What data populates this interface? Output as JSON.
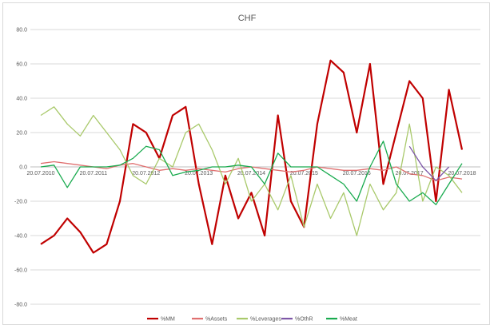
{
  "chart_data": {
    "type": "line",
    "title": "CHF",
    "xlabel": "",
    "ylabel": "",
    "ylim": [
      -80,
      80
    ],
    "yticks": [
      -80,
      -60,
      -40,
      -20,
      0,
      20,
      40,
      60,
      80
    ],
    "ytick_labels": [
      "-80.0",
      "-60.0",
      "-40.0",
      "-20.0",
      "0.0",
      "20.0",
      "40.0",
      "60.0",
      "80.0"
    ],
    "x_start": "2010-07-20",
    "x_end": "2018-07-20",
    "xtick_labels": [
      "20.07.2010",
      "20.07.2011",
      "20.07.2012",
      "20.07.2013",
      "20.07.2014",
      "20.07.2015",
      "20.07.2016",
      "20.07.2017",
      "20.07.2018"
    ],
    "grid": true,
    "legend_position": "bottom",
    "x_dates": [
      "2010-07-20",
      "2010-10-20",
      "2011-01-20",
      "2011-04-20",
      "2011-07-20",
      "2011-10-20",
      "2012-01-20",
      "2012-04-20",
      "2012-07-20",
      "2012-10-20",
      "2013-01-20",
      "2013-04-20",
      "2013-07-20",
      "2013-10-20",
      "2014-01-20",
      "2014-04-20",
      "2014-07-20",
      "2014-10-20",
      "2015-01-20",
      "2015-04-20",
      "2015-07-20",
      "2015-10-20",
      "2016-01-20",
      "2016-04-20",
      "2016-07-20",
      "2016-10-20",
      "2017-01-20",
      "2017-04-20",
      "2017-07-20",
      "2017-10-20",
      "2018-01-20",
      "2018-04-20",
      "2018-07-20"
    ],
    "series": [
      {
        "name": "%MM",
        "color": "#c00000",
        "values": [
          -45,
          -40,
          -30,
          -38,
          -50,
          -45,
          -20,
          25,
          20,
          5,
          30,
          35,
          -10,
          -45,
          -5,
          -30,
          -15,
          -40,
          30,
          -20,
          -35,
          25,
          62,
          55,
          20,
          60,
          -10,
          20,
          50,
          40,
          -20,
          45,
          10
        ]
      },
      {
        "name": "%Assets",
        "color": "#e07070",
        "values": [
          2,
          3,
          2,
          1,
          0,
          -1,
          1,
          2,
          0,
          -2,
          -1,
          -2,
          -1,
          -2,
          -3,
          -1,
          0,
          -1,
          -2,
          -3,
          -2,
          0,
          -1,
          -2,
          -2,
          -1,
          -2,
          0,
          -4,
          -5,
          -8,
          -6,
          -7
        ]
      },
      {
        "name": "%Leverages",
        "color": "#a9c96b",
        "values": [
          30,
          35,
          25,
          18,
          30,
          20,
          10,
          -5,
          -10,
          5,
          0,
          20,
          25,
          10,
          -10,
          5,
          -20,
          -10,
          -25,
          -5,
          -35,
          -10,
          -30,
          -15,
          -40,
          -10,
          -25,
          -15,
          25,
          -20,
          0,
          -5,
          -15
        ]
      },
      {
        "name": "%OthR",
        "color": "#7e57a8",
        "values": [
          null,
          null,
          null,
          null,
          null,
          null,
          null,
          null,
          null,
          null,
          null,
          null,
          null,
          null,
          null,
          null,
          null,
          null,
          null,
          null,
          null,
          null,
          null,
          null,
          null,
          null,
          null,
          null,
          12,
          0,
          -8,
          0,
          null
        ]
      },
      {
        "name": "%Meat",
        "color": "#1aab4f",
        "values": [
          0,
          1,
          -12,
          0,
          0,
          0,
          1,
          5,
          12,
          10,
          -5,
          -3,
          -2,
          0,
          0,
          1,
          0,
          -10,
          8,
          0,
          0,
          0,
          -5,
          -10,
          -20,
          0,
          15,
          -10,
          -20,
          -15,
          -22,
          -10,
          2
        ]
      }
    ]
  }
}
